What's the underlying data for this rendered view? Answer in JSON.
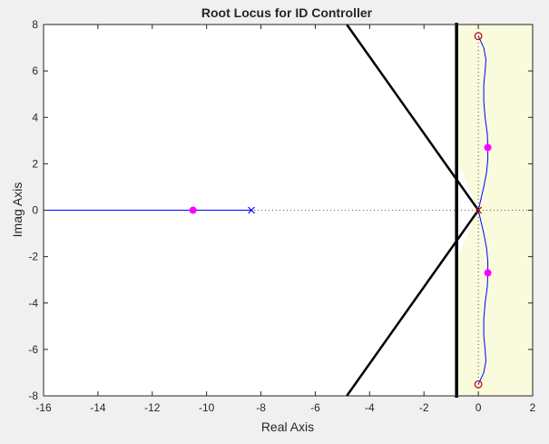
{
  "chart_data": {
    "type": "line",
    "title": "Root Locus for ID Controller",
    "xlabel": "Real Axis",
    "ylabel": "Imag Axis",
    "xlim": [
      -16,
      2
    ],
    "ylim": [
      -8,
      8
    ],
    "xticks": [
      -16,
      -14,
      -12,
      -10,
      -8,
      -6,
      -4,
      -2,
      0,
      2
    ],
    "yticks": [
      -8,
      -6,
      -4,
      -2,
      0,
      2,
      4,
      6,
      8
    ],
    "grid": false,
    "colors": {
      "locus": "#0000ff",
      "zeros": "#c00000",
      "selected_poles": "#ff00ff",
      "constraints": "#000000",
      "allowed_region": "#fafadc",
      "plot_background": "#ffffff",
      "figure_background": "#f0f0f0"
    },
    "allowed_region": {
      "x_min": -0.8,
      "x_max": 2,
      "damping_line_slope": 2.75
    },
    "constraint_lines": [
      {
        "kind": "vertical",
        "x": -0.8
      },
      {
        "kind": "damping",
        "points": [
          [
            0,
            0
          ],
          [
            -4.84,
            8
          ]
        ]
      },
      {
        "kind": "damping",
        "points": [
          [
            0,
            0
          ],
          [
            -4.84,
            -8
          ]
        ]
      }
    ],
    "series": [
      {
        "kind": "locus",
        "values": [
          [
            -8.35,
            0
          ],
          [
            -16,
            0
          ]
        ]
      },
      {
        "kind": "locus",
        "values": [
          [
            0,
            0
          ],
          [
            0.1,
            0.5
          ],
          [
            0.2,
            1.0
          ],
          [
            0.3,
            1.6
          ],
          [
            0.35,
            2.2
          ],
          [
            0.35,
            2.7
          ],
          [
            0.33,
            3.3
          ],
          [
            0.25,
            4.0
          ],
          [
            0.2,
            4.7
          ],
          [
            0.2,
            5.4
          ],
          [
            0.25,
            6.0
          ],
          [
            0.28,
            6.5
          ],
          [
            0.2,
            7.0
          ],
          [
            0,
            7.5
          ]
        ]
      },
      {
        "kind": "locus",
        "values": [
          [
            0,
            0
          ],
          [
            0.1,
            -0.5
          ],
          [
            0.2,
            -1.0
          ],
          [
            0.3,
            -1.6
          ],
          [
            0.35,
            -2.2
          ],
          [
            0.35,
            -2.7
          ],
          [
            0.33,
            -3.3
          ],
          [
            0.25,
            -4.0
          ],
          [
            0.2,
            -4.7
          ],
          [
            0.2,
            -5.4
          ],
          [
            0.25,
            -6.0
          ],
          [
            0.28,
            -6.5
          ],
          [
            0.2,
            -7.0
          ],
          [
            0,
            -7.5
          ]
        ]
      }
    ],
    "open_loop_poles": [
      [
        -8.35,
        0
      ],
      [
        0,
        0
      ]
    ],
    "zeros": [
      [
        0,
        7.5
      ],
      [
        0,
        -7.5
      ]
    ],
    "selected_poles": [
      [
        -10.5,
        0
      ],
      [
        0.35,
        2.7
      ],
      [
        0.35,
        -2.7
      ]
    ]
  }
}
